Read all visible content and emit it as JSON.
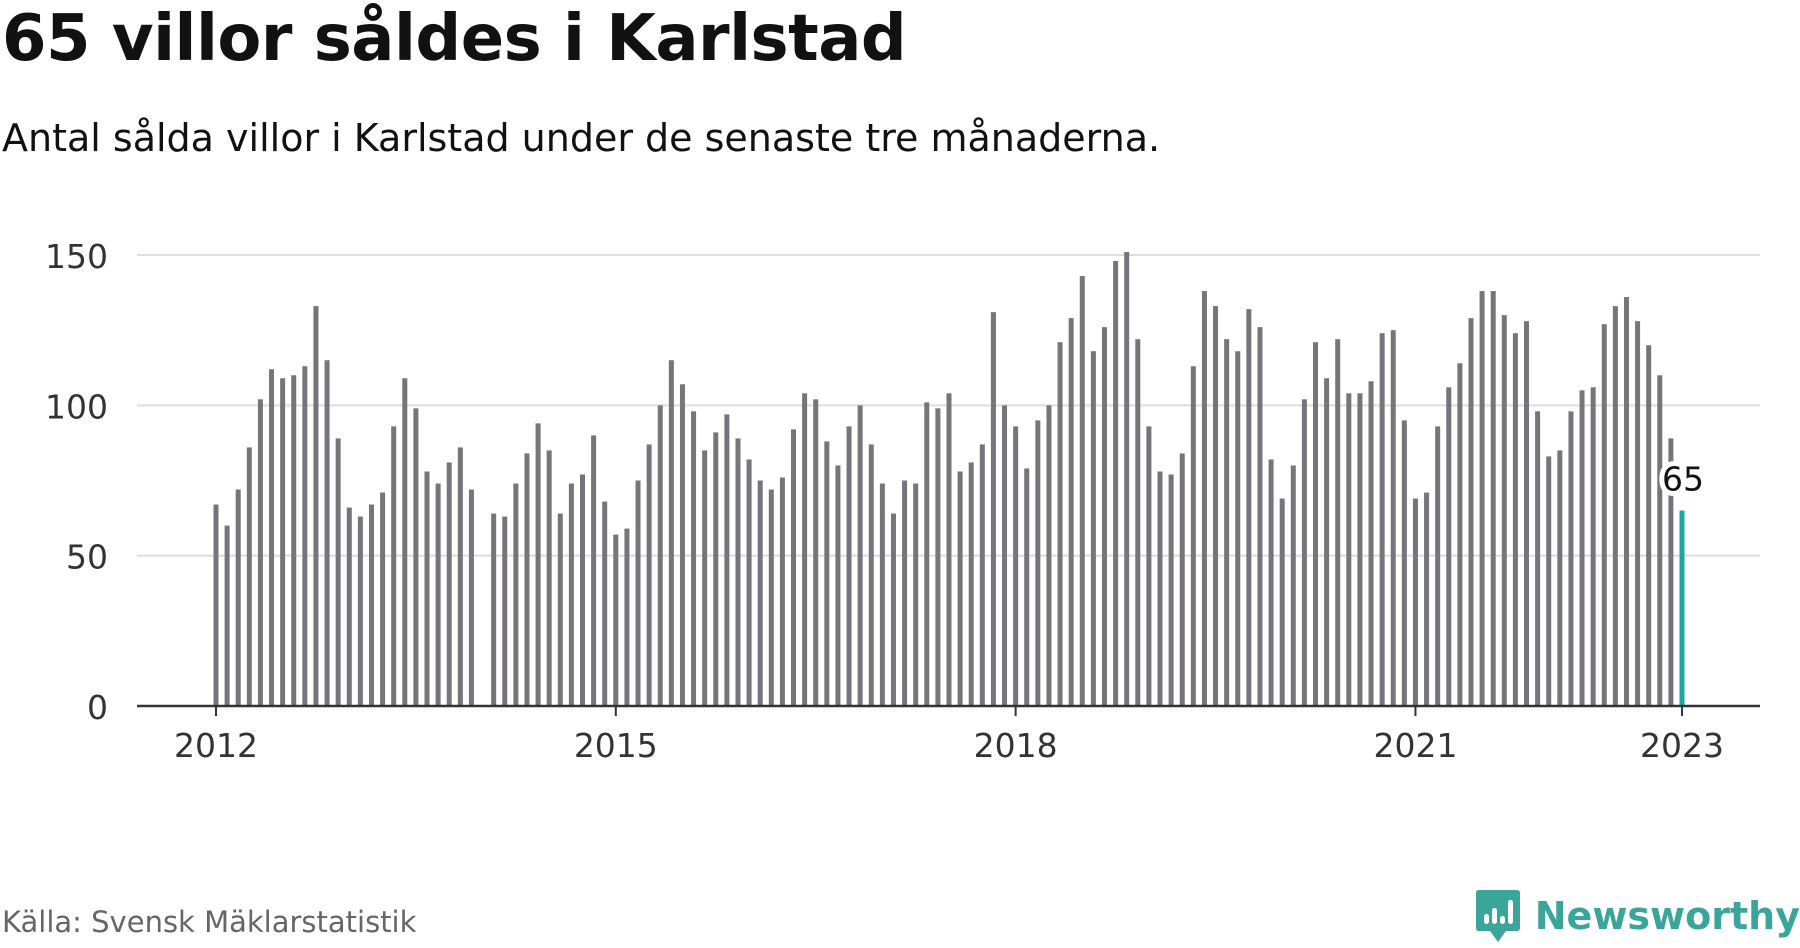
{
  "header": {
    "title": "65 villor såldes i Karlstad",
    "subtitle": "Antal sålda villor i Karlstad under de senaste tre månaderna."
  },
  "footer": {
    "source": "Källa: Svensk Mäklarstatistik",
    "brand": "Newsworthy",
    "brand_icon": "newsworthy-logo-icon"
  },
  "colors": {
    "bar": "#75757a",
    "highlight": "#1fa79a",
    "grid": "#dddddd",
    "axis": "#333333",
    "brand": "#3aa59a"
  },
  "chart_data": {
    "type": "bar",
    "title": "65 villor såldes i Karlstad",
    "subtitle": "Antal sålda villor i Karlstad under de senaste tre månaderna.",
    "xlabel": "",
    "ylabel": "",
    "ylim": [
      0,
      150
    ],
    "yticks": [
      0,
      50,
      100,
      150
    ],
    "grid": true,
    "x_start": "2012-01",
    "x_end": "2023-01",
    "xticks": [
      {
        "label": "2012",
        "date": "2012-01"
      },
      {
        "label": "2015",
        "date": "2015-01"
      },
      {
        "label": "2018",
        "date": "2018-01"
      },
      {
        "label": "2021",
        "date": "2021-01"
      },
      {
        "label": "2023",
        "date": "2023-01"
      }
    ],
    "highlight": {
      "date": "2023-01",
      "value": 65,
      "label": "65"
    },
    "series": [
      {
        "values": [
          {
            "x": "2012-01",
            "y": 67
          },
          {
            "x": "2012-02",
            "y": 60
          },
          {
            "x": "2012-03",
            "y": 72
          },
          {
            "x": "2012-04",
            "y": 86
          },
          {
            "x": "2012-05",
            "y": 102
          },
          {
            "x": "2012-06",
            "y": 112
          },
          {
            "x": "2012-07",
            "y": 109
          },
          {
            "x": "2012-08",
            "y": 110
          },
          {
            "x": "2012-09",
            "y": 113
          },
          {
            "x": "2012-10",
            "y": 133
          },
          {
            "x": "2012-11",
            "y": 115
          },
          {
            "x": "2012-12",
            "y": 89
          },
          {
            "x": "2013-01",
            "y": 66
          },
          {
            "x": "2013-02",
            "y": 63
          },
          {
            "x": "2013-03",
            "y": 67
          },
          {
            "x": "2013-04",
            "y": 71
          },
          {
            "x": "2013-05",
            "y": 93
          },
          {
            "x": "2013-06",
            "y": 109
          },
          {
            "x": "2013-07",
            "y": 99
          },
          {
            "x": "2013-08",
            "y": 78
          },
          {
            "x": "2013-09",
            "y": 74
          },
          {
            "x": "2013-10",
            "y": 81
          },
          {
            "x": "2013-11",
            "y": 86
          },
          {
            "x": "2013-12",
            "y": 72
          },
          {
            "x": "2014-02",
            "y": 64
          },
          {
            "x": "2014-03",
            "y": 63
          },
          {
            "x": "2014-04",
            "y": 74
          },
          {
            "x": "2014-05",
            "y": 84
          },
          {
            "x": "2014-06",
            "y": 94
          },
          {
            "x": "2014-07",
            "y": 85
          },
          {
            "x": "2014-08",
            "y": 64
          },
          {
            "x": "2014-09",
            "y": 74
          },
          {
            "x": "2014-10",
            "y": 77
          },
          {
            "x": "2014-11",
            "y": 90
          },
          {
            "x": "2014-12",
            "y": 68
          },
          {
            "x": "2015-01",
            "y": 57
          },
          {
            "x": "2015-02",
            "y": 59
          },
          {
            "x": "2015-03",
            "y": 75
          },
          {
            "x": "2015-04",
            "y": 87
          },
          {
            "x": "2015-05",
            "y": 100
          },
          {
            "x": "2015-06",
            "y": 115
          },
          {
            "x": "2015-07",
            "y": 107
          },
          {
            "x": "2015-08",
            "y": 98
          },
          {
            "x": "2015-09",
            "y": 85
          },
          {
            "x": "2015-10",
            "y": 91
          },
          {
            "x": "2015-11",
            "y": 97
          },
          {
            "x": "2015-12",
            "y": 89
          },
          {
            "x": "2016-01",
            "y": 82
          },
          {
            "x": "2016-02",
            "y": 75
          },
          {
            "x": "2016-03",
            "y": 72
          },
          {
            "x": "2016-04",
            "y": 76
          },
          {
            "x": "2016-05",
            "y": 92
          },
          {
            "x": "2016-06",
            "y": 104
          },
          {
            "x": "2016-07",
            "y": 102
          },
          {
            "x": "2016-08",
            "y": 88
          },
          {
            "x": "2016-09",
            "y": 80
          },
          {
            "x": "2016-10",
            "y": 93
          },
          {
            "x": "2016-11",
            "y": 100
          },
          {
            "x": "2016-12",
            "y": 87
          },
          {
            "x": "2017-01",
            "y": 74
          },
          {
            "x": "2017-02",
            "y": 64
          },
          {
            "x": "2017-03",
            "y": 75
          },
          {
            "x": "2017-04",
            "y": 74
          },
          {
            "x": "2017-05",
            "y": 101
          },
          {
            "x": "2017-06",
            "y": 99
          },
          {
            "x": "2017-07",
            "y": 104
          },
          {
            "x": "2017-08",
            "y": 78
          },
          {
            "x": "2017-09",
            "y": 81
          },
          {
            "x": "2017-10",
            "y": 87
          },
          {
            "x": "2017-11",
            "y": 131
          },
          {
            "x": "2017-12",
            "y": 100
          },
          {
            "x": "2018-01",
            "y": 93
          },
          {
            "x": "2018-02",
            "y": 79
          },
          {
            "x": "2018-03",
            "y": 95
          },
          {
            "x": "2018-04",
            "y": 100
          },
          {
            "x": "2018-05",
            "y": 121
          },
          {
            "x": "2018-06",
            "y": 129
          },
          {
            "x": "2018-07",
            "y": 143
          },
          {
            "x": "2018-08",
            "y": 118
          },
          {
            "x": "2018-09",
            "y": 126
          },
          {
            "x": "2018-10",
            "y": 148
          },
          {
            "x": "2018-11",
            "y": 151
          },
          {
            "x": "2018-12",
            "y": 122
          },
          {
            "x": "2019-01",
            "y": 93
          },
          {
            "x": "2019-02",
            "y": 78
          },
          {
            "x": "2019-03",
            "y": 77
          },
          {
            "x": "2019-04",
            "y": 84
          },
          {
            "x": "2019-05",
            "y": 113
          },
          {
            "x": "2019-06",
            "y": 138
          },
          {
            "x": "2019-07",
            "y": 133
          },
          {
            "x": "2019-08",
            "y": 122
          },
          {
            "x": "2019-09",
            "y": 118
          },
          {
            "x": "2019-10",
            "y": 132
          },
          {
            "x": "2019-11",
            "y": 126
          },
          {
            "x": "2019-12",
            "y": 82
          },
          {
            "x": "2020-01",
            "y": 69
          },
          {
            "x": "2020-02",
            "y": 80
          },
          {
            "x": "2020-03",
            "y": 102
          },
          {
            "x": "2020-04",
            "y": 121
          },
          {
            "x": "2020-05",
            "y": 109
          },
          {
            "x": "2020-06",
            "y": 122
          },
          {
            "x": "2020-07",
            "y": 104
          },
          {
            "x": "2020-08",
            "y": 104
          },
          {
            "x": "2020-09",
            "y": 108
          },
          {
            "x": "2020-10",
            "y": 124
          },
          {
            "x": "2020-11",
            "y": 125
          },
          {
            "x": "2020-12",
            "y": 95
          },
          {
            "x": "2021-01",
            "y": 69
          },
          {
            "x": "2021-02",
            "y": 71
          },
          {
            "x": "2021-03",
            "y": 93
          },
          {
            "x": "2021-04",
            "y": 106
          },
          {
            "x": "2021-05",
            "y": 114
          },
          {
            "x": "2021-06",
            "y": 129
          },
          {
            "x": "2021-07",
            "y": 138
          },
          {
            "x": "2021-08",
            "y": 138
          },
          {
            "x": "2021-09",
            "y": 130
          },
          {
            "x": "2021-10",
            "y": 124
          },
          {
            "x": "2021-11",
            "y": 128
          },
          {
            "x": "2021-12",
            "y": 98
          },
          {
            "x": "2022-01",
            "y": 83
          },
          {
            "x": "2022-02",
            "y": 85
          },
          {
            "x": "2022-03",
            "y": 98
          },
          {
            "x": "2022-04",
            "y": 105
          },
          {
            "x": "2022-05",
            "y": 106
          },
          {
            "x": "2022-06",
            "y": 127
          },
          {
            "x": "2022-07",
            "y": 133
          },
          {
            "x": "2022-08",
            "y": 136
          },
          {
            "x": "2022-09",
            "y": 128
          },
          {
            "x": "2022-10",
            "y": 120
          },
          {
            "x": "2022-11",
            "y": 110
          },
          {
            "x": "2022-12",
            "y": 89
          },
          {
            "x": "2023-01",
            "y": 65
          }
        ]
      }
    ]
  }
}
